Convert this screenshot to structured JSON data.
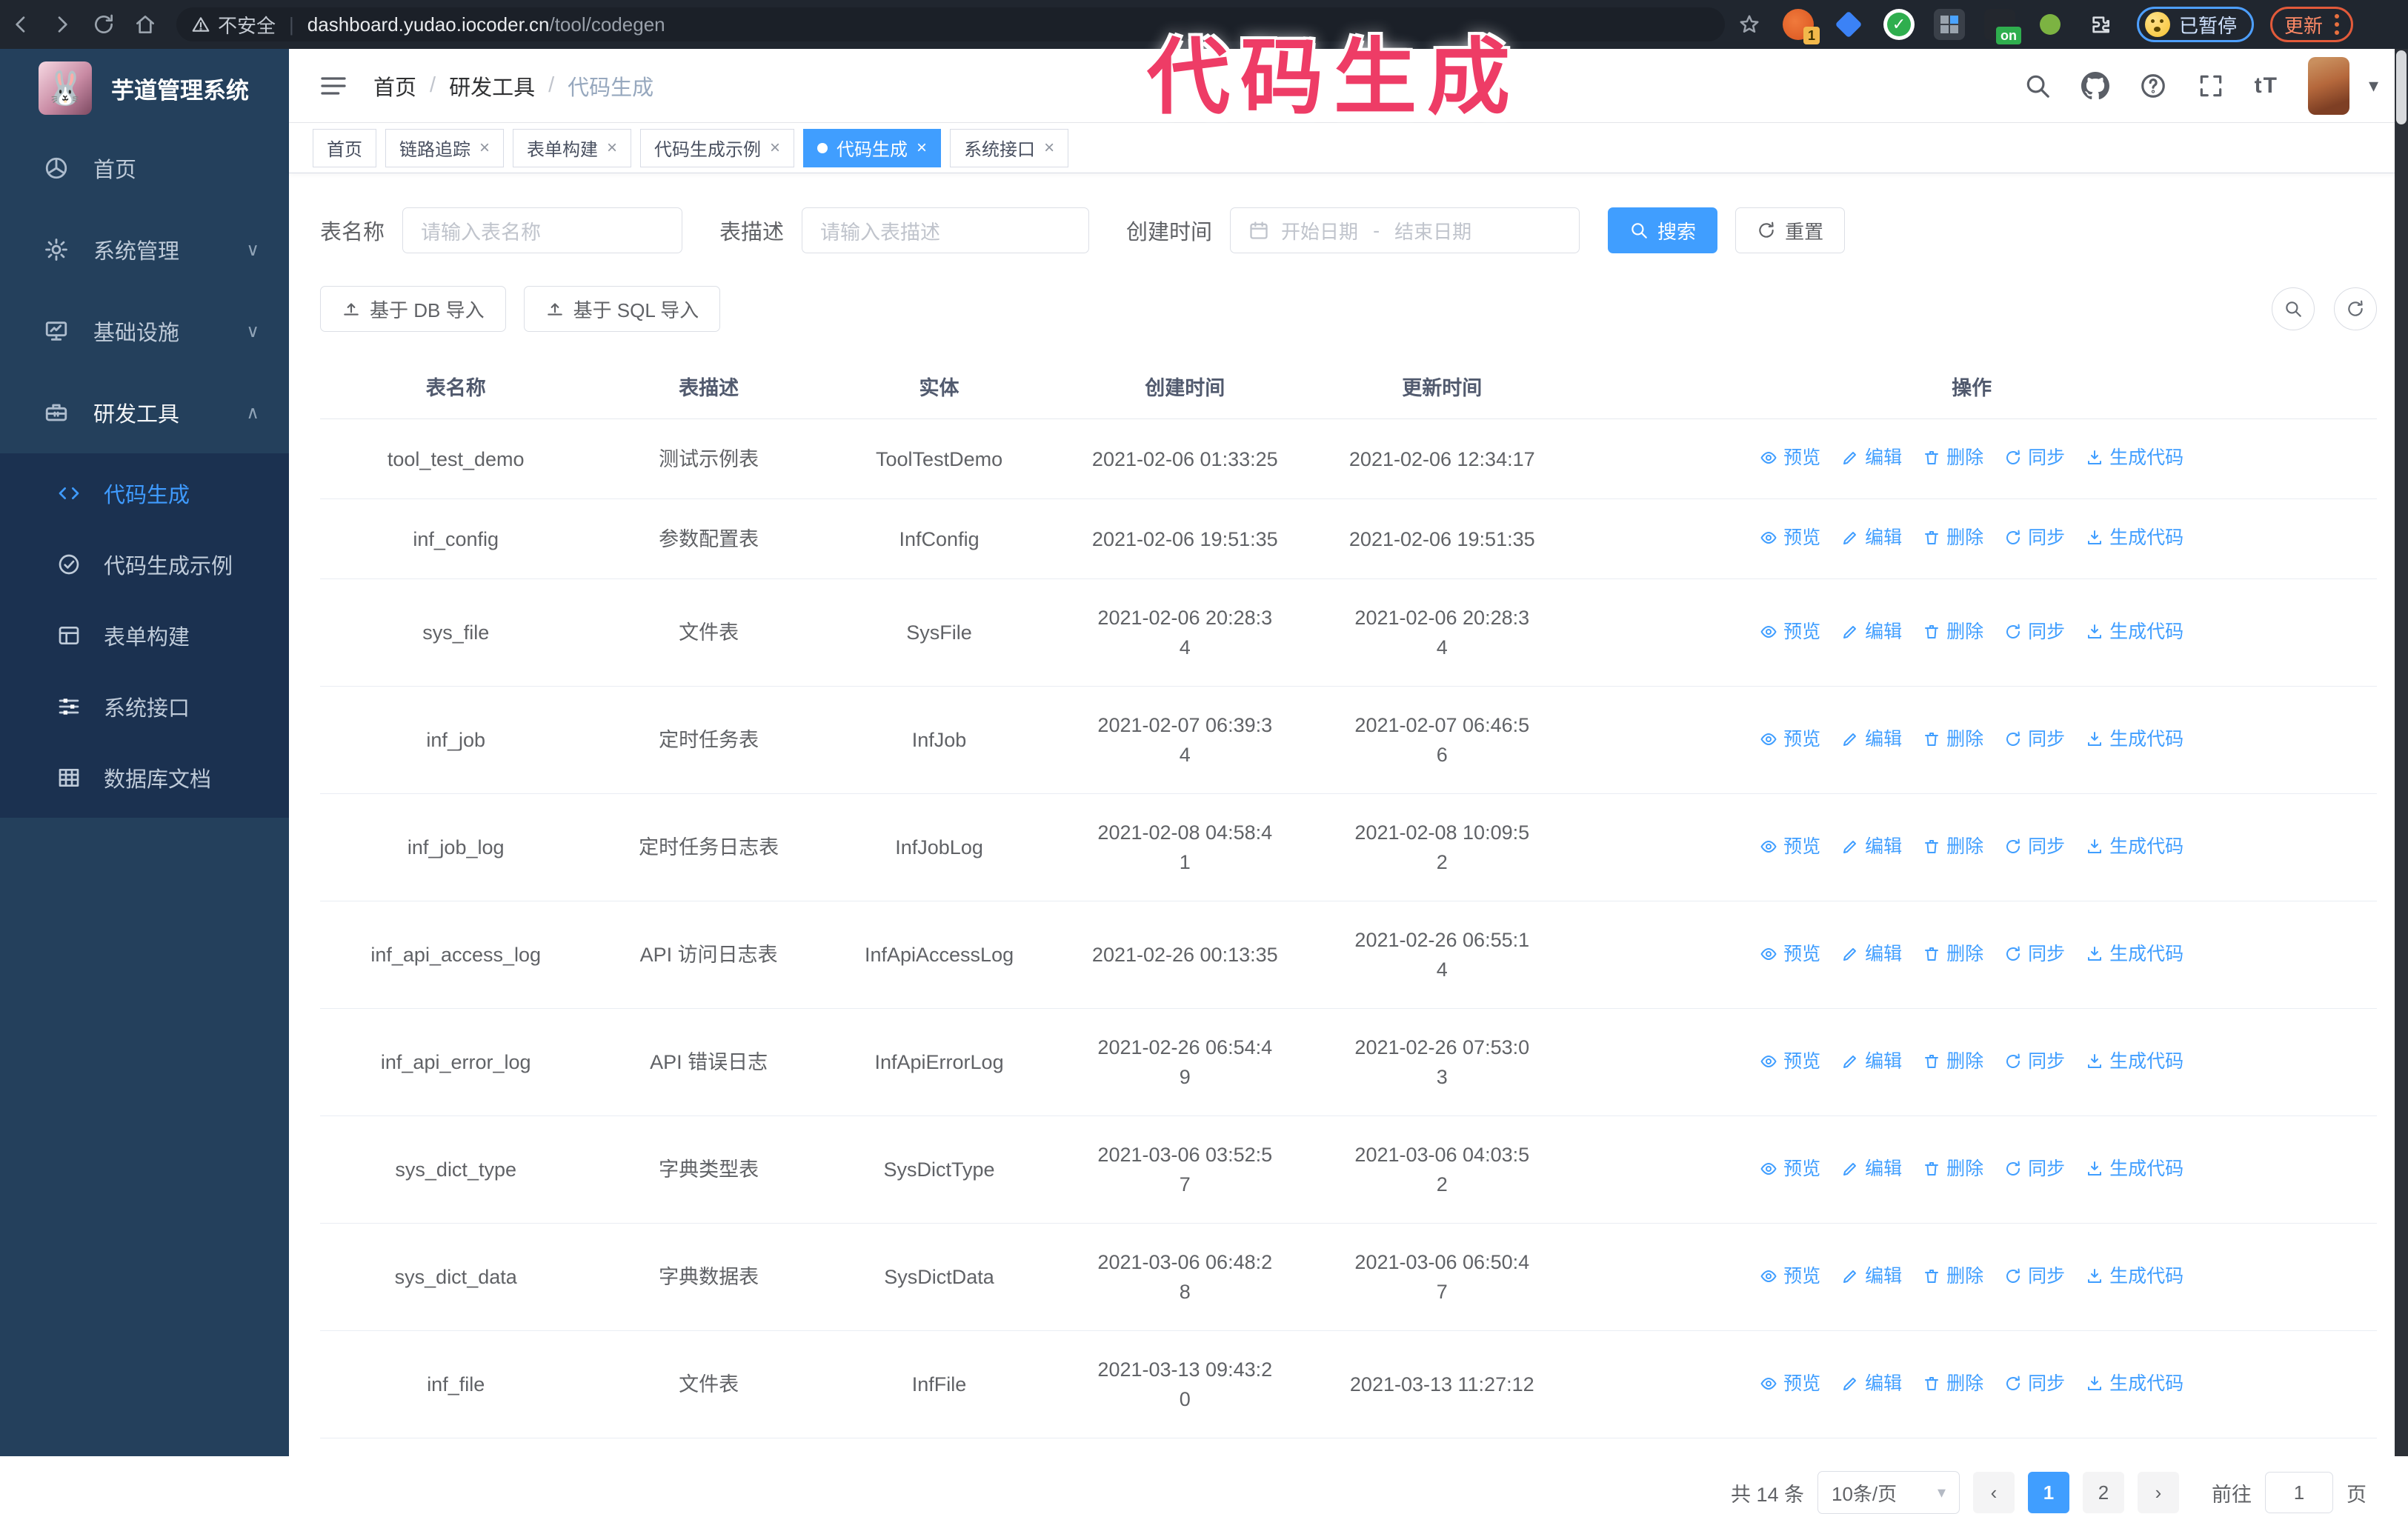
{
  "colors": {
    "primary": "#409eff",
    "annotation_pink": "#ee3c66",
    "sidebar_bg": "#24405c",
    "submenu_bg": "#1b3150"
  },
  "annotation": {
    "text": "代码生成"
  },
  "browser": {
    "security_label": "不安全",
    "url_host": "dashboard.yudao.iocoder.cn",
    "url_path": "/tool/codegen",
    "ext1_badge": "1",
    "ext_on_badge": "on",
    "paused_label": "已暂停",
    "update_label": "更新"
  },
  "sidebar": {
    "title": "芋道管理系统",
    "logo_glyph": "🐰",
    "items": [
      {
        "label": "首页",
        "icon": "dashboard-icon",
        "chevron": "",
        "active": false
      },
      {
        "label": "系统管理",
        "icon": "gear-icon",
        "chevron": "down",
        "active": false
      },
      {
        "label": "基础设施",
        "icon": "monitor-icon",
        "chevron": "down",
        "active": false
      },
      {
        "label": "研发工具",
        "icon": "toolbox-icon",
        "chevron": "up",
        "active": true
      }
    ],
    "sub_items": [
      {
        "label": "代码生成",
        "icon": "code-icon",
        "active": true
      },
      {
        "label": "代码生成示例",
        "icon": "example-icon",
        "active": false
      },
      {
        "label": "表单构建",
        "icon": "form-icon",
        "active": false
      },
      {
        "label": "系统接口",
        "icon": "api-icon",
        "active": false
      },
      {
        "label": "数据库文档",
        "icon": "database-icon",
        "active": false
      }
    ]
  },
  "breadcrumb": {
    "items": [
      "首页",
      "研发工具",
      "代码生成"
    ],
    "separator": "/"
  },
  "tabs": [
    {
      "label": "首页",
      "closable": false,
      "active": false
    },
    {
      "label": "链路追踪",
      "closable": true,
      "active": false
    },
    {
      "label": "表单构建",
      "closable": true,
      "active": false
    },
    {
      "label": "代码生成示例",
      "closable": true,
      "active": false
    },
    {
      "label": "代码生成",
      "closable": true,
      "active": true
    },
    {
      "label": "系统接口",
      "closable": true,
      "active": false
    }
  ],
  "filters": {
    "name_label": "表名称",
    "name_placeholder": "请输入表名称",
    "desc_label": "表描述",
    "desc_placeholder": "请输入表描述",
    "time_label": "创建时间",
    "start_placeholder": "开始日期",
    "range_separator": "-",
    "end_placeholder": "结束日期",
    "search_label": "搜索",
    "reset_label": "重置"
  },
  "import_buttons": {
    "db": "基于 DB 导入",
    "sql": "基于 SQL 导入"
  },
  "table": {
    "columns": [
      "表名称",
      "表描述",
      "实体",
      "创建时间",
      "更新时间",
      "操作"
    ],
    "col_widths": [
      "13.2%",
      "11.4%",
      "11.0%",
      "12.9%",
      "12.1%",
      "39.4%"
    ],
    "actions": [
      {
        "label": "预览",
        "icon": "eye-icon"
      },
      {
        "label": "编辑",
        "icon": "edit-icon"
      },
      {
        "label": "删除",
        "icon": "delete-icon"
      },
      {
        "label": "同步",
        "icon": "sync-icon"
      },
      {
        "label": "生成代码",
        "icon": "download-icon"
      }
    ],
    "rows": [
      {
        "name": "tool_test_demo",
        "description": "测试示例表",
        "entity": "ToolTestDemo",
        "created": "2021-02-06 01:33:25",
        "updated": "2021-02-06 12:34:17"
      },
      {
        "name": "inf_config",
        "description": "参数配置表",
        "entity": "InfConfig",
        "created": "2021-02-06 19:51:35",
        "updated": "2021-02-06 19:51:35"
      },
      {
        "name": "sys_file",
        "description": "文件表",
        "entity": "SysFile",
        "created": "2021-02-06 20:28:3\n4",
        "updated": "2021-02-06 20:28:3\n4"
      },
      {
        "name": "inf_job",
        "description": "定时任务表",
        "entity": "InfJob",
        "created": "2021-02-07 06:39:3\n4",
        "updated": "2021-02-07 06:46:5\n6"
      },
      {
        "name": "inf_job_log",
        "description": "定时任务日志表",
        "entity": "InfJobLog",
        "created": "2021-02-08 04:58:4\n1",
        "updated": "2021-02-08 10:09:5\n2"
      },
      {
        "name": "inf_api_access_log",
        "description": "API 访问日志表",
        "entity": "InfApiAccessLog",
        "created": "2021-02-26 00:13:35",
        "updated": "2021-02-26 06:55:1\n4"
      },
      {
        "name": "inf_api_error_log",
        "description": "API 错误日志",
        "entity": "InfApiErrorLog",
        "created": "2021-02-26 06:54:4\n9",
        "updated": "2021-02-26 07:53:0\n3"
      },
      {
        "name": "sys_dict_type",
        "description": "字典类型表",
        "entity": "SysDictType",
        "created": "2021-03-06 03:52:5\n7",
        "updated": "2021-03-06 04:03:5\n2"
      },
      {
        "name": "sys_dict_data",
        "description": "字典数据表",
        "entity": "SysDictData",
        "created": "2021-03-06 06:48:2\n8",
        "updated": "2021-03-06 06:50:4\n7"
      },
      {
        "name": "inf_file",
        "description": "文件表",
        "entity": "InfFile",
        "created": "2021-03-13 09:43:2\n0",
        "updated": "2021-03-13 11:27:12"
      }
    ]
  },
  "pagination": {
    "total": "共 14 条",
    "page_size": "10条/页",
    "prev": "‹",
    "next": "›",
    "pages": [
      "1",
      "2"
    ],
    "active_page": "1",
    "goto_label": "前往",
    "goto_value": "1",
    "unit": "页"
  }
}
